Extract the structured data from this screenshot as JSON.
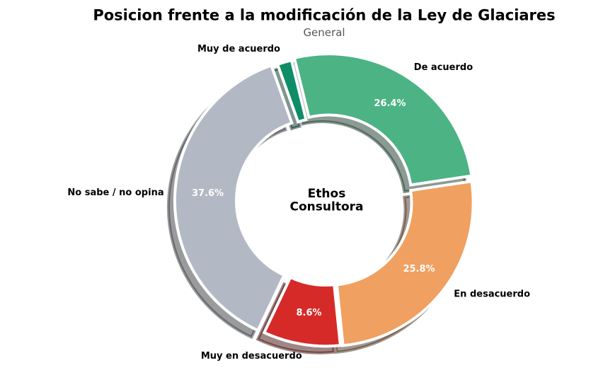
{
  "chart_data": {
    "type": "pie",
    "title": "Posicion frente a la modificación de la Ley de Glaciares",
    "subtitle": "General",
    "center_lines": [
      "Ethos",
      "Consultora"
    ],
    "labels": [
      "Muy de acuerdo",
      "De acuerdo",
      "En desacuerdo",
      "Muy en desacuerdo",
      "No sabe / no opina"
    ],
    "values": [
      1.6,
      26.4,
      25.8,
      8.6,
      37.6
    ],
    "pct_labels": [
      "",
      "26.4%",
      "25.8%",
      "8.6%",
      "37.6%"
    ],
    "colors": [
      "#0d8e66",
      "#4cb384",
      "#f0a060",
      "#d62a28",
      "#b3b9c4"
    ],
    "label_color": "#000000",
    "pct_color": "#ffffff",
    "background_color": "#ffffff",
    "start_angle": 109.44,
    "clockwise": true,
    "donut": true,
    "shadow": true,
    "legend_position": "none"
  }
}
